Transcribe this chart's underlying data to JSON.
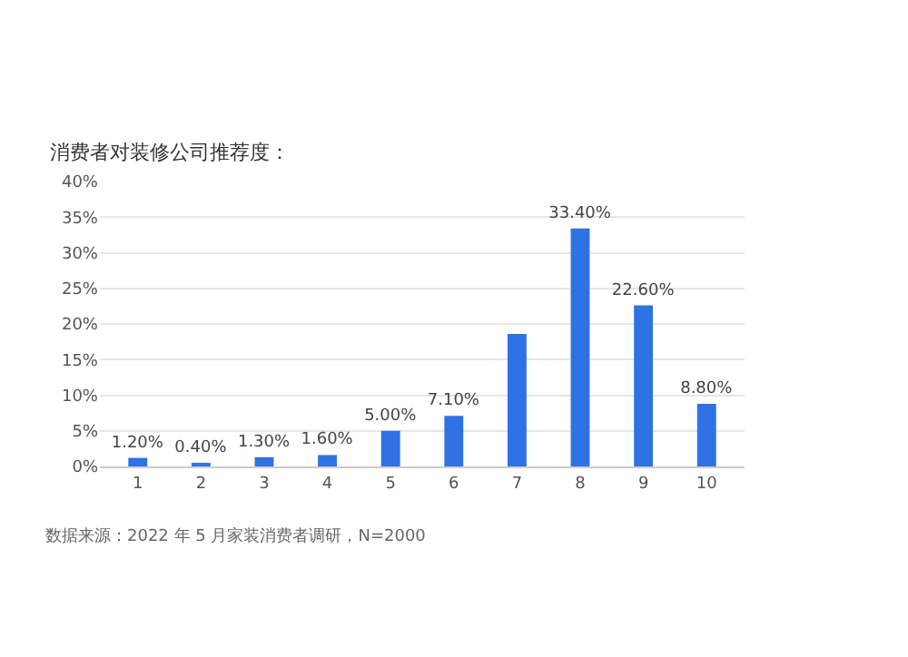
{
  "chart_data": {
    "type": "bar",
    "title": "消费者对装修公司推荐度：",
    "categories": [
      "1",
      "2",
      "3",
      "4",
      "5",
      "6",
      "7",
      "8",
      "9",
      "10"
    ],
    "values": [
      1.2,
      0.4,
      1.3,
      1.6,
      5.0,
      7.1,
      18.6,
      33.4,
      22.6,
      8.8
    ],
    "value_labels": [
      "1.20%",
      "0.40%",
      "1.30%",
      "1.60%",
      "5.00%",
      "7.10%",
      null,
      "33.40%",
      "22.60%",
      "8.80%"
    ],
    "color": "#2f72e4",
    "ylim": [
      0,
      40
    ],
    "yticks": [
      {
        "value": 0,
        "label": "0%"
      },
      {
        "value": 5,
        "label": "5%"
      },
      {
        "value": 10,
        "label": "10%"
      },
      {
        "value": 15,
        "label": "15%"
      },
      {
        "value": 20,
        "label": "20%"
      },
      {
        "value": 25,
        "label": "25%"
      },
      {
        "value": 30,
        "label": "30%"
      },
      {
        "value": 35,
        "label": "35%"
      },
      {
        "value": 40,
        "label": "40%"
      }
    ],
    "grid": "y",
    "annotations": [
      "数据来源：2022 年 5 月家装消费者调研，N=2000"
    ]
  }
}
